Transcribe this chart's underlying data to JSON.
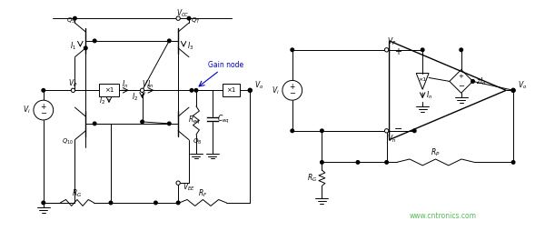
{
  "bg_color": "#ffffff",
  "line_color": "#000000",
  "text_color": "#000000",
  "watermark_color": "#55bb55",
  "watermark_text": "www.cntronics.com",
  "gain_node_color": "#0000cc",
  "figsize": [
    6.0,
    2.54
  ],
  "dpi": 100
}
